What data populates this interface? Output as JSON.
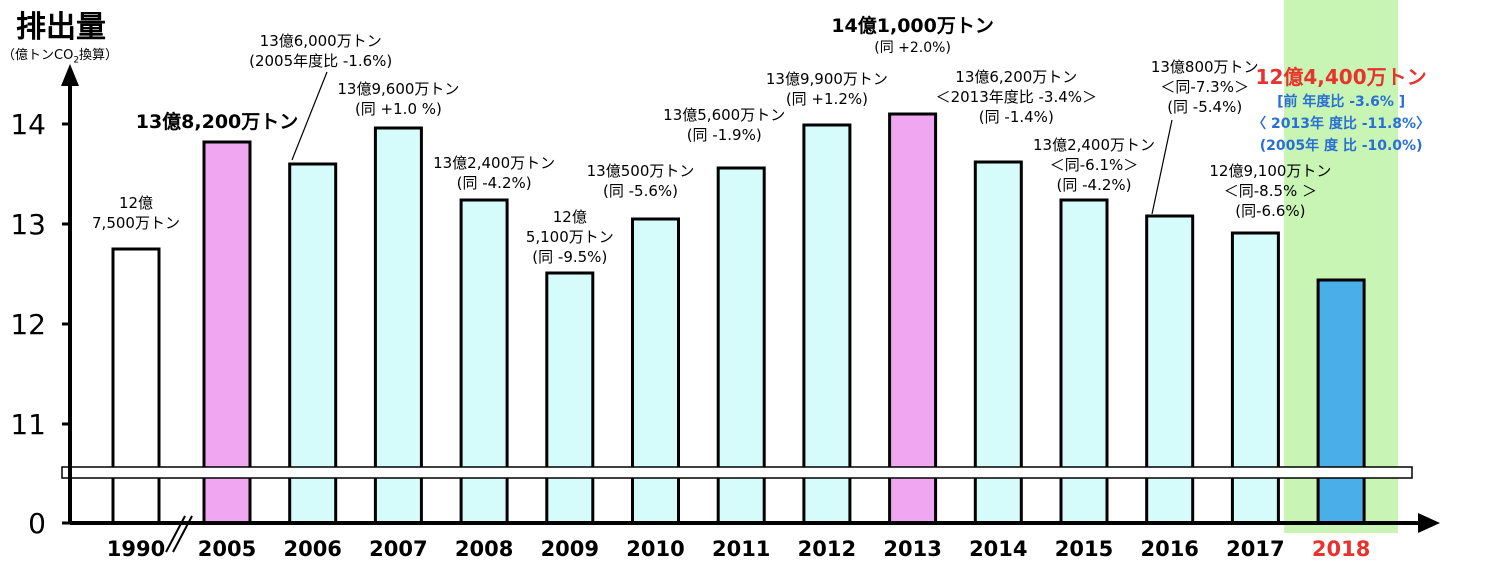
{
  "chart_data": {
    "type": "bar",
    "ylabel": "排出量",
    "yunit_prefix": "（億トンCO",
    "yunit_sub": "2",
    "yunit_suffix": "換算）",
    "y_ticks": [
      "0",
      "11",
      "12",
      "13",
      "14"
    ],
    "ylim_broken": [
      11,
      14.5
    ],
    "categories": [
      "1990",
      "2005",
      "2006",
      "2007",
      "2008",
      "2009",
      "2010",
      "2011",
      "2012",
      "2013",
      "2014",
      "2015",
      "2016",
      "2017",
      "2018"
    ],
    "values": [
      12.75,
      13.82,
      13.6,
      13.96,
      13.24,
      12.51,
      13.05,
      13.56,
      13.99,
      14.1,
      13.62,
      13.24,
      13.08,
      12.91,
      12.44
    ],
    "bar_fill": [
      "#ffffff",
      "#f0a6f0",
      "#d6fbfb",
      "#d6fbfb",
      "#d6fbfb",
      "#d6fbfb",
      "#d6fbfb",
      "#d6fbfb",
      "#d6fbfb",
      "#f0a6f0",
      "#d6fbfb",
      "#d6fbfb",
      "#d6fbfb",
      "#d6fbfb",
      "#4aaee8"
    ],
    "highlight_band_color": "#c8f5b4",
    "highlight_category": "2018",
    "highlight_label_color": "#e8322d",
    "blue_text_color": "#2a6fd6",
    "annotations": [
      {
        "category": "1990",
        "lines": [
          "12億",
          "7,500万トン"
        ]
      },
      {
        "category": "2005",
        "lines": [
          "13億8,200万トン"
        ],
        "bold": true
      },
      {
        "category": "2006",
        "lines": [
          "13億6,000万トン",
          "(2005年度比 -1.6%)"
        ]
      },
      {
        "category": "2007",
        "lines": [
          "13億9,600万トン",
          "(同 +1.0 %)"
        ]
      },
      {
        "category": "2008",
        "lines": [
          "13億2,400万トン",
          "(同 -4.2%)"
        ]
      },
      {
        "category": "2009",
        "lines": [
          "12億",
          "5,100万トン",
          "(同 -9.5%)"
        ]
      },
      {
        "category": "2010",
        "lines": [
          "13億500万トン",
          "(同 -5.6%)"
        ]
      },
      {
        "category": "2011",
        "lines": [
          "13億5,600万トン",
          "(同 -1.9%)"
        ]
      },
      {
        "category": "2012",
        "lines": [
          "13億9,900万トン",
          "(同 +1.2%)"
        ]
      },
      {
        "category": "2013",
        "lines": [
          "14億1,000万トン",
          "(同 +2.0%)"
        ],
        "bold": true
      },
      {
        "category": "2014",
        "lines": [
          "13億6,200万トン",
          "＜2013年度比 -3.4%＞",
          "(同 -1.4%)"
        ]
      },
      {
        "category": "2015",
        "lines": [
          "13億2,400万トン",
          "＜同-6.1%＞",
          "(同 -4.2%)"
        ]
      },
      {
        "category": "2016",
        "lines": [
          "13億800万トン",
          "＜同-7.3%＞",
          "(同 -5.4%)"
        ]
      },
      {
        "category": "2017",
        "lines": [
          "12億9,100万トン",
          "＜同-8.5% ＞",
          "(同-6.6%)"
        ]
      },
      {
        "category": "2018",
        "lines": [
          "12億4,400万トン",
          "[前 年度比 -3.6% ]",
          "〈 2013年 度比 -11.8%〉",
          "(2005年 度 比 -10.0%)"
        ],
        "bold": true
      }
    ]
  }
}
